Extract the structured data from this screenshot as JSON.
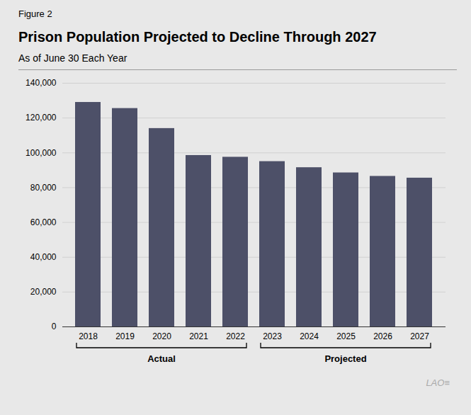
{
  "chart_data": {
    "type": "bar",
    "figure_label": "Figure 2",
    "title": "Prison Population Projected to Decline Through 2027",
    "subtitle": "As of June 30 Each Year",
    "categories": [
      "2018",
      "2019",
      "2020",
      "2021",
      "2022",
      "2023",
      "2024",
      "2025",
      "2026",
      "2027"
    ],
    "values": [
      129000,
      125500,
      114000,
      98500,
      97500,
      95000,
      91500,
      88500,
      86500,
      85500
    ],
    "color": "#4d5068",
    "ylim": [
      0,
      140000
    ],
    "yticks": [
      0,
      {
        "value": 20000,
        "label": "20,000"
      },
      {
        "value": 40000,
        "label": "40,000"
      },
      {
        "value": 60000,
        "label": "60,000"
      },
      {
        "value": 80000,
        "label": "80,000"
      },
      {
        "value": 100000,
        "label": "100,000"
      },
      {
        "value": 120000,
        "label": "120,000"
      },
      {
        "value": 140000,
        "label": "140,000"
      }
    ],
    "grid": true,
    "annotations": [
      {
        "text": "Actual",
        "from": "2018",
        "to": "2022"
      },
      {
        "text": "Projected",
        "from": "2023",
        "to": "2027"
      }
    ],
    "caption": "LAO≡"
  }
}
